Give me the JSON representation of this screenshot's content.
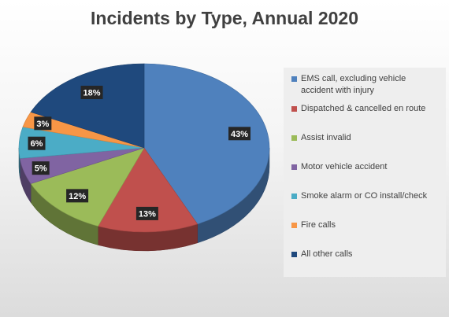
{
  "chart_data": {
    "type": "pie",
    "title": "Incidents by Type, Annual 2020",
    "categories": [
      "EMS call, excluding vehicle accident with injury",
      "Dispatched & cancelled en route",
      "Assist invalid",
      "Motor vehicle accident",
      "Smoke alarm or CO install/check",
      "Fire calls",
      "All other calls"
    ],
    "values": [
      43,
      13,
      12,
      5,
      6,
      3,
      18
    ],
    "labels": [
      "43%",
      "13%",
      "12%",
      "5%",
      "6%",
      "3%",
      "18%"
    ],
    "colors": [
      "#4f81bd",
      "#c0504d",
      "#9bbb59",
      "#8064a2",
      "#4bacc6",
      "#f79646",
      "#1f497d"
    ],
    "legend_position": "right",
    "style": "3d"
  }
}
